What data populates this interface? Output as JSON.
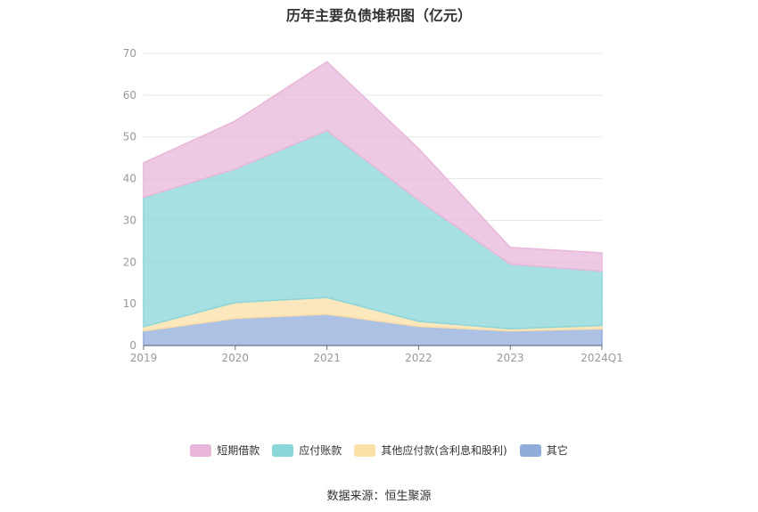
{
  "chart_data": {
    "type": "area",
    "stacked": true,
    "title": "历年主要负债堆积图（亿元）",
    "x": [
      "2019",
      "2020",
      "2021",
      "2022",
      "2023",
      "2024Q1"
    ],
    "ylim": [
      0,
      70
    ],
    "yticks": [
      0,
      10,
      20,
      30,
      40,
      50,
      60,
      70
    ],
    "grid": true,
    "legend_position": "bottom",
    "series": [
      {
        "name": "其它",
        "color": "#91acdb",
        "values": [
          3.5,
          6.5,
          7.5,
          4.6,
          3.5,
          4.0
        ]
      },
      {
        "name": "其他应付款(含利息和股利)",
        "color": "#fce0a8",
        "values": [
          1.0,
          3.8,
          4.0,
          1.2,
          0.5,
          0.8
        ]
      },
      {
        "name": "应付账款",
        "color": "#8ad6d9",
        "values": [
          31.0,
          32.0,
          40.0,
          29.0,
          15.5,
          13.0
        ]
      },
      {
        "name": "短期借款",
        "color": "#e8b7d9",
        "values": [
          8.3,
          11.5,
          16.5,
          12.4,
          4.0,
          4.4
        ]
      }
    ]
  },
  "source_text": "数据来源：恒生聚源"
}
